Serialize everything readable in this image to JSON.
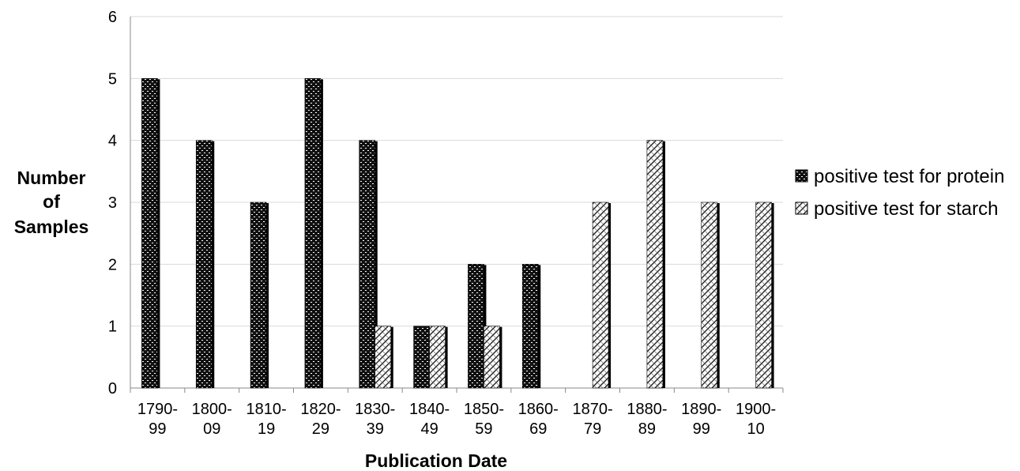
{
  "chart_data": {
    "type": "bar",
    "title": "",
    "xlabel": "Publication Date",
    "ylabel": "Number of Samples",
    "ylabel_lines": [
      "Number",
      "of",
      "Samples"
    ],
    "ylim": [
      0,
      6
    ],
    "yticks": [
      0,
      1,
      2,
      3,
      4,
      5,
      6
    ],
    "grid": true,
    "legend_position": "right",
    "categories": [
      [
        "1790-",
        "99"
      ],
      [
        "1800-",
        "09"
      ],
      [
        "1810-",
        "19"
      ],
      [
        "1820-",
        "29"
      ],
      [
        "1830-",
        "39"
      ],
      [
        "1840-",
        "49"
      ],
      [
        "1850-",
        "59"
      ],
      [
        "1860-",
        "69"
      ],
      [
        "1870-",
        "79"
      ],
      [
        "1880-",
        "89"
      ],
      [
        "1890-",
        "99"
      ],
      [
        "1900-",
        "10"
      ]
    ],
    "series": [
      {
        "name": "positive test for protein",
        "pattern": "dark-dotted",
        "values": [
          5,
          4,
          3,
          5,
          4,
          1,
          2,
          2,
          0,
          0,
          0,
          0
        ]
      },
      {
        "name": "positive test for starch",
        "pattern": "light-hatched",
        "values": [
          0,
          0,
          0,
          0,
          1,
          1,
          1,
          0,
          3,
          4,
          3,
          3
        ]
      }
    ],
    "colors": {
      "grid": "#d9d9d9",
      "axis": "#888888",
      "bar_edge": "#000000"
    }
  }
}
